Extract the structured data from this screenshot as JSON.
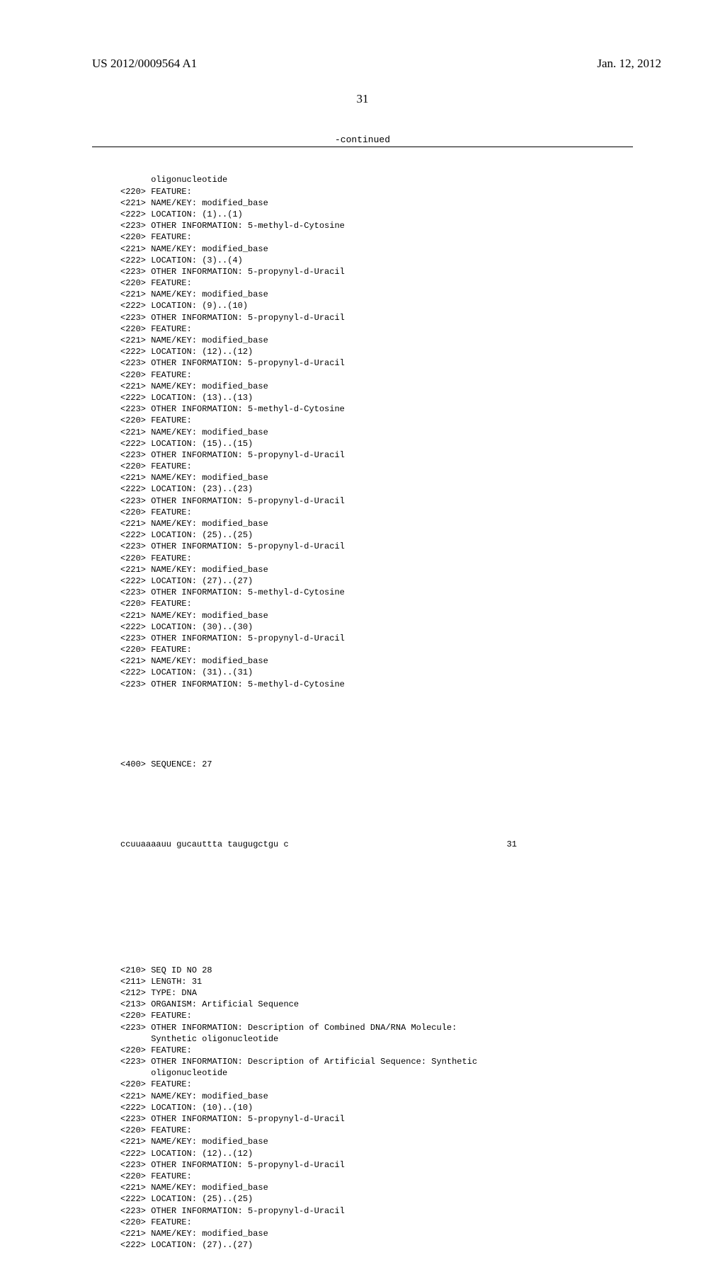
{
  "header": {
    "pub_number": "US 2012/0009564 A1",
    "pub_date": "Jan. 12, 2012"
  },
  "page_number": "31",
  "continued_label": "-continued",
  "listing": {
    "block1": [
      {
        "tag": "",
        "text": "oligonucleotide",
        "indent": true
      },
      {
        "tag": "<220>",
        "text": "FEATURE:"
      },
      {
        "tag": "<221>",
        "text": "NAME/KEY: modified_base"
      },
      {
        "tag": "<222>",
        "text": "LOCATION: (1)..(1)"
      },
      {
        "tag": "<223>",
        "text": "OTHER INFORMATION: 5-methyl-d-Cytosine"
      },
      {
        "tag": "<220>",
        "text": "FEATURE:"
      },
      {
        "tag": "<221>",
        "text": "NAME/KEY: modified_base"
      },
      {
        "tag": "<222>",
        "text": "LOCATION: (3)..(4)"
      },
      {
        "tag": "<223>",
        "text": "OTHER INFORMATION: 5-propynyl-d-Uracil"
      },
      {
        "tag": "<220>",
        "text": "FEATURE:"
      },
      {
        "tag": "<221>",
        "text": "NAME/KEY: modified_base"
      },
      {
        "tag": "<222>",
        "text": "LOCATION: (9)..(10)"
      },
      {
        "tag": "<223>",
        "text": "OTHER INFORMATION: 5-propynyl-d-Uracil"
      },
      {
        "tag": "<220>",
        "text": "FEATURE:"
      },
      {
        "tag": "<221>",
        "text": "NAME/KEY: modified_base"
      },
      {
        "tag": "<222>",
        "text": "LOCATION: (12)..(12)"
      },
      {
        "tag": "<223>",
        "text": "OTHER INFORMATION: 5-propynyl-d-Uracil"
      },
      {
        "tag": "<220>",
        "text": "FEATURE:"
      },
      {
        "tag": "<221>",
        "text": "NAME/KEY: modified_base"
      },
      {
        "tag": "<222>",
        "text": "LOCATION: (13)..(13)"
      },
      {
        "tag": "<223>",
        "text": "OTHER INFORMATION: 5-methyl-d-Cytosine"
      },
      {
        "tag": "<220>",
        "text": "FEATURE:"
      },
      {
        "tag": "<221>",
        "text": "NAME/KEY: modified_base"
      },
      {
        "tag": "<222>",
        "text": "LOCATION: (15)..(15)"
      },
      {
        "tag": "<223>",
        "text": "OTHER INFORMATION: 5-propynyl-d-Uracil"
      },
      {
        "tag": "<220>",
        "text": "FEATURE:"
      },
      {
        "tag": "<221>",
        "text": "NAME/KEY: modified_base"
      },
      {
        "tag": "<222>",
        "text": "LOCATION: (23)..(23)"
      },
      {
        "tag": "<223>",
        "text": "OTHER INFORMATION: 5-propynyl-d-Uracil"
      },
      {
        "tag": "<220>",
        "text": "FEATURE:"
      },
      {
        "tag": "<221>",
        "text": "NAME/KEY: modified_base"
      },
      {
        "tag": "<222>",
        "text": "LOCATION: (25)..(25)"
      },
      {
        "tag": "<223>",
        "text": "OTHER INFORMATION: 5-propynyl-d-Uracil"
      },
      {
        "tag": "<220>",
        "text": "FEATURE:"
      },
      {
        "tag": "<221>",
        "text": "NAME/KEY: modified_base"
      },
      {
        "tag": "<222>",
        "text": "LOCATION: (27)..(27)"
      },
      {
        "tag": "<223>",
        "text": "OTHER INFORMATION: 5-methyl-d-Cytosine"
      },
      {
        "tag": "<220>",
        "text": "FEATURE:"
      },
      {
        "tag": "<221>",
        "text": "NAME/KEY: modified_base"
      },
      {
        "tag": "<222>",
        "text": "LOCATION: (30)..(30)"
      },
      {
        "tag": "<223>",
        "text": "OTHER INFORMATION: 5-propynyl-d-Uracil"
      },
      {
        "tag": "<220>",
        "text": "FEATURE:"
      },
      {
        "tag": "<221>",
        "text": "NAME/KEY: modified_base"
      },
      {
        "tag": "<222>",
        "text": "LOCATION: (31)..(31)"
      },
      {
        "tag": "<223>",
        "text": "OTHER INFORMATION: 5-methyl-d-Cytosine"
      }
    ],
    "seq27_header": {
      "tag": "<400>",
      "text": "SEQUENCE: 27"
    },
    "seq27": {
      "sequence": "ccuuaaaauu gucauttta taugugctgu c",
      "length": "31"
    },
    "block2": [
      {
        "tag": "<210>",
        "text": "SEQ ID NO 28"
      },
      {
        "tag": "<211>",
        "text": "LENGTH: 31"
      },
      {
        "tag": "<212>",
        "text": "TYPE: DNA"
      },
      {
        "tag": "<213>",
        "text": "ORGANISM: Artificial Sequence"
      },
      {
        "tag": "<220>",
        "text": "FEATURE:"
      },
      {
        "tag": "<223>",
        "text": "OTHER INFORMATION: Description of Combined DNA/RNA Molecule:"
      },
      {
        "tag": "",
        "text": "Synthetic oligonucleotide",
        "indent": true
      },
      {
        "tag": "<220>",
        "text": "FEATURE:"
      },
      {
        "tag": "<223>",
        "text": "OTHER INFORMATION: Description of Artificial Sequence: Synthetic"
      },
      {
        "tag": "",
        "text": "oligonucleotide",
        "indent": true
      },
      {
        "tag": "<220>",
        "text": "FEATURE:"
      },
      {
        "tag": "<221>",
        "text": "NAME/KEY: modified_base"
      },
      {
        "tag": "<222>",
        "text": "LOCATION: (10)..(10)"
      },
      {
        "tag": "<223>",
        "text": "OTHER INFORMATION: 5-propynyl-d-Uracil"
      },
      {
        "tag": "<220>",
        "text": "FEATURE:"
      },
      {
        "tag": "<221>",
        "text": "NAME/KEY: modified_base"
      },
      {
        "tag": "<222>",
        "text": "LOCATION: (12)..(12)"
      },
      {
        "tag": "<223>",
        "text": "OTHER INFORMATION: 5-propynyl-d-Uracil"
      },
      {
        "tag": "<220>",
        "text": "FEATURE:"
      },
      {
        "tag": "<221>",
        "text": "NAME/KEY: modified_base"
      },
      {
        "tag": "<222>",
        "text": "LOCATION: (25)..(25)"
      },
      {
        "tag": "<223>",
        "text": "OTHER INFORMATION: 5-propynyl-d-Uracil"
      },
      {
        "tag": "<220>",
        "text": "FEATURE:"
      },
      {
        "tag": "<221>",
        "text": "NAME/KEY: modified_base"
      },
      {
        "tag": "<222>",
        "text": "LOCATION: (27)..(27)"
      }
    ]
  }
}
